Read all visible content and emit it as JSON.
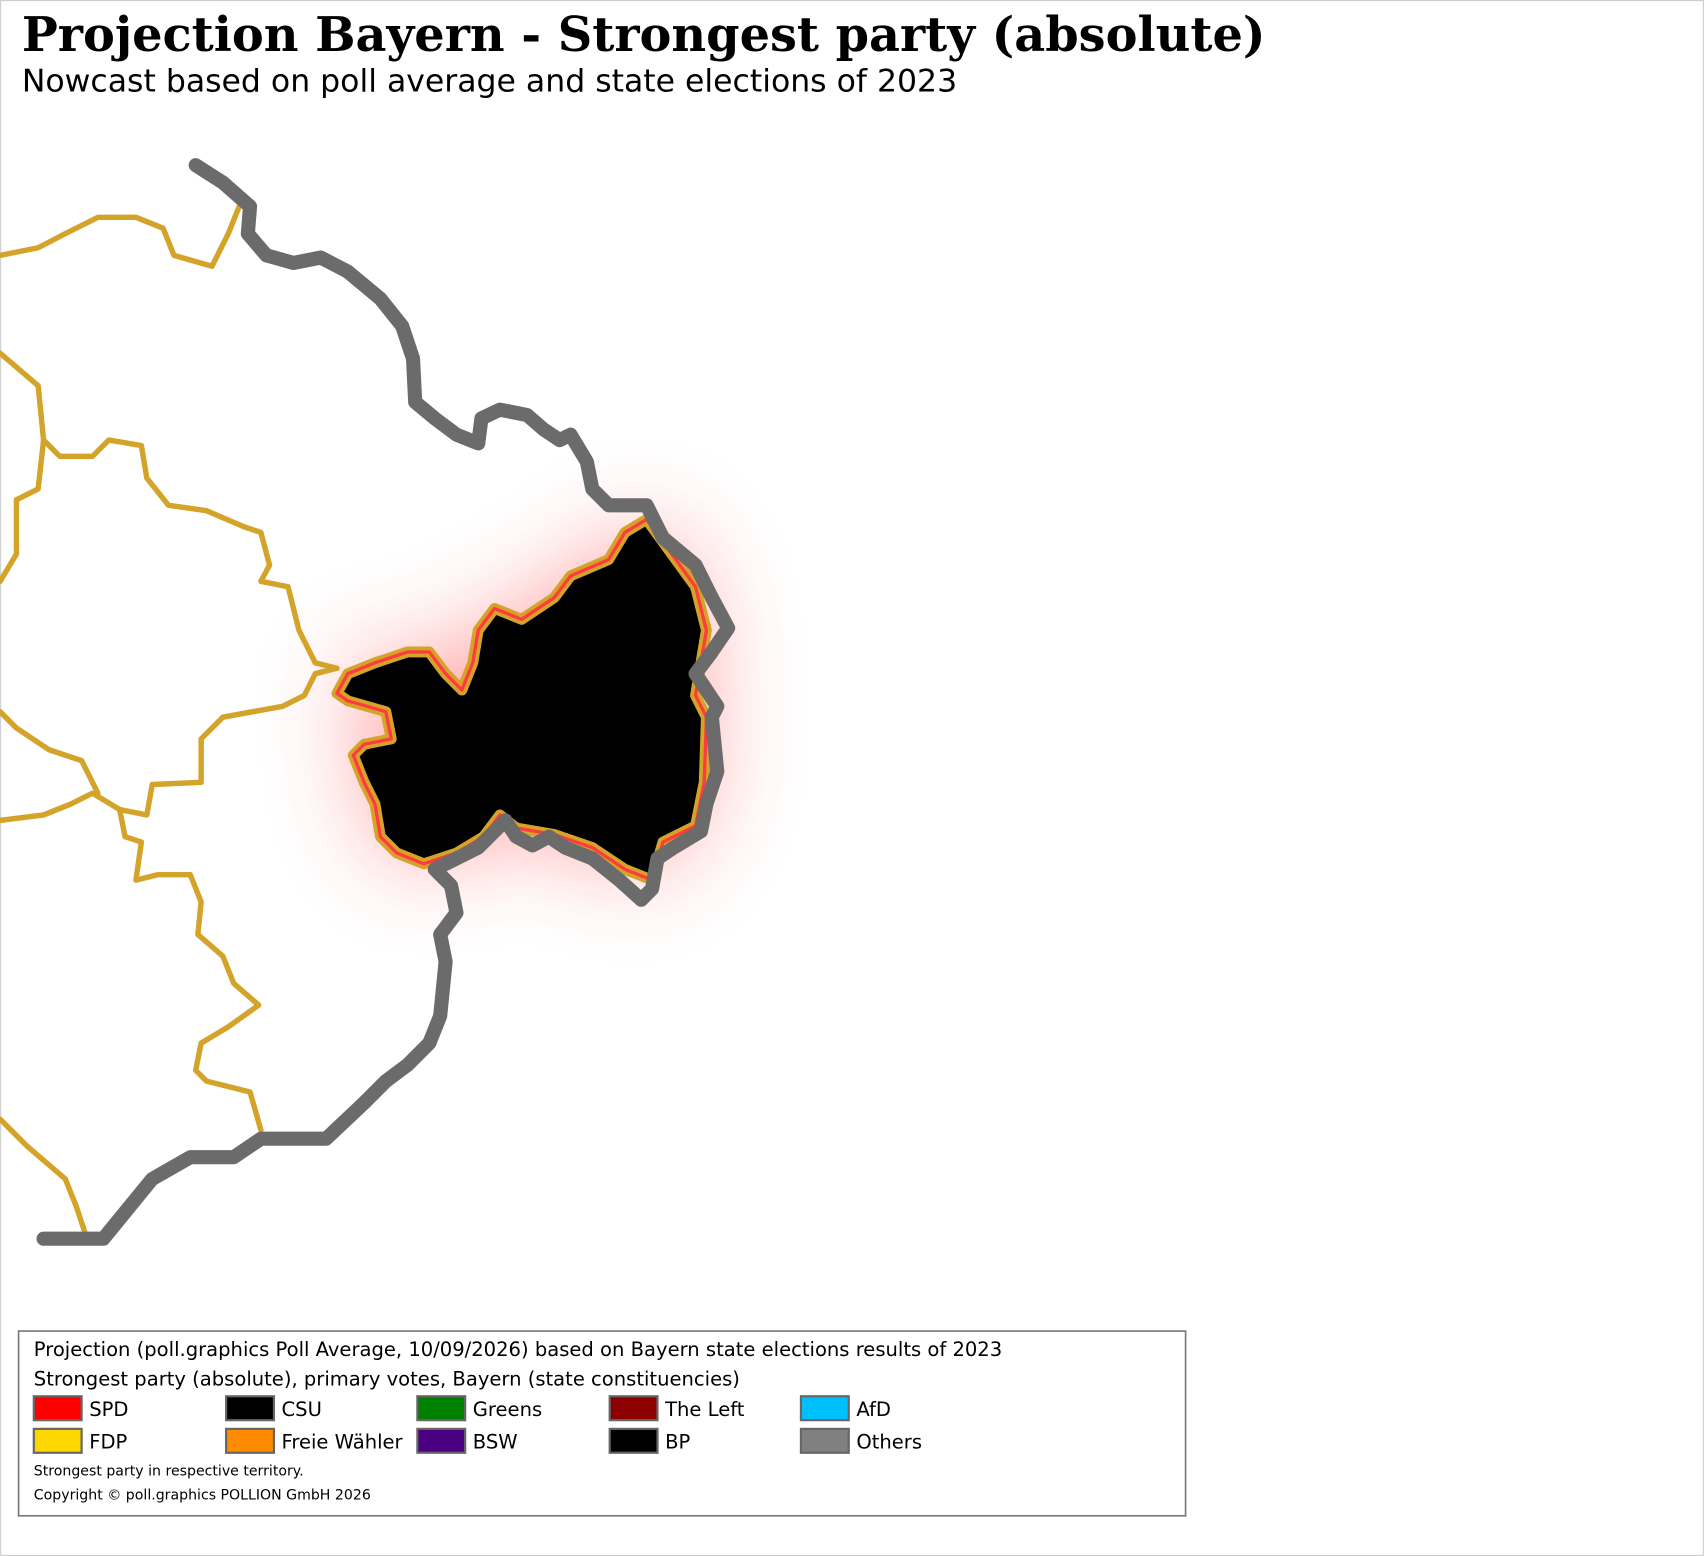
{
  "header": {
    "title": "Projection Bayern - Strongest party (absolute)",
    "subtitle": "Nowcast based on poll average and state elections of 2023"
  },
  "legend": {
    "lines": [
      "Projection (poll.graphics Poll Average, 10/09/2026) based on Bayern state elections results of 2023",
      "Strongest party (absolute), primary votes, Bayern (state constituencies)"
    ],
    "items": [
      {
        "name": "SPD",
        "color": "#ff0000"
      },
      {
        "name": "CSU",
        "color": "#000000"
      },
      {
        "name": "Greens",
        "color": "#008000"
      },
      {
        "name": "The Left",
        "color": "#8b0000"
      },
      {
        "name": "AfD",
        "color": "#00bfff"
      },
      {
        "name": "FDP",
        "color": "#ffd700"
      },
      {
        "name": "Freie Wähler",
        "color": "#ff8c00"
      },
      {
        "name": "BSW",
        "color": "#4b0082"
      },
      {
        "name": "BP",
        "color": "#000000"
      },
      {
        "name": "Others",
        "color": "#808080"
      }
    ],
    "notes": [
      "Strongest party in respective territory.",
      "Copyright © poll.graphics POLLION GmbH 2026"
    ]
  }
}
